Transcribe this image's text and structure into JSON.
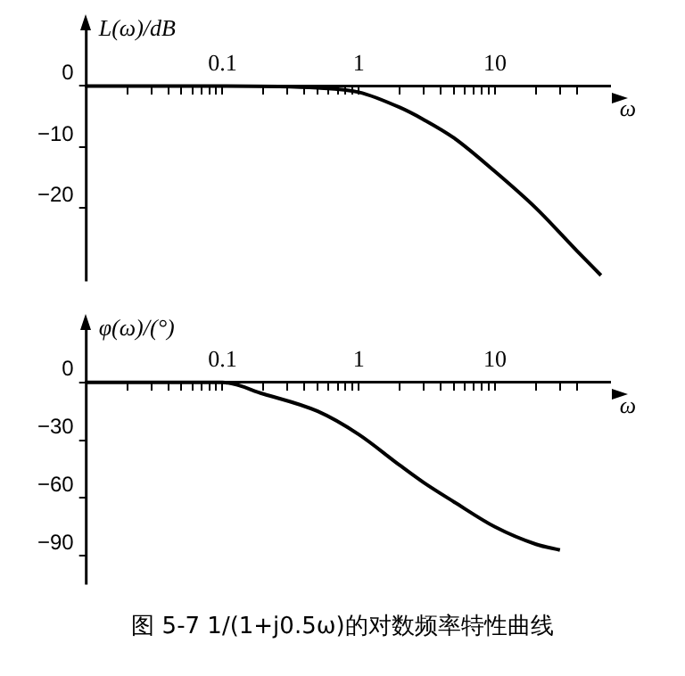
{
  "chart_data": [
    {
      "type": "line",
      "ylabel": "L(ω)/dB",
      "xlabel": "ω",
      "log": "x",
      "grid": false,
      "legend": false,
      "marker": "none",
      "line_style": "solid",
      "x": [
        0.01,
        0.1,
        0.5,
        1,
        2,
        3,
        5,
        10,
        20,
        40,
        60
      ],
      "series": [
        {
          "color": "#000000",
          "values": [
            0,
            0,
            -0.3,
            -1,
            -3.5,
            -5.5,
            -8.5,
            -14,
            -20,
            -27,
            -31
          ]
        }
      ],
      "xlim": [
        0.01,
        70
      ],
      "xticks": [
        {
          "value": 0.02,
          "label": null
        },
        {
          "value": 0.03,
          "label": null
        },
        {
          "value": 0.04,
          "label": null
        },
        {
          "value": 0.05,
          "label": null
        },
        {
          "value": 0.06,
          "label": null
        },
        {
          "value": 0.07,
          "label": null
        },
        {
          "value": 0.08,
          "label": null
        },
        {
          "value": 0.09,
          "label": null
        },
        0.1,
        {
          "value": 0.2,
          "label": null
        },
        {
          "value": 0.3,
          "label": null
        },
        {
          "value": 0.4,
          "label": null
        },
        {
          "value": 0.5,
          "label": null
        },
        {
          "value": 0.6,
          "label": null
        },
        {
          "value": 0.7,
          "label": null
        },
        {
          "value": 0.8,
          "label": null
        },
        {
          "value": 0.9,
          "label": null
        },
        1,
        {
          "value": 2,
          "label": null
        },
        {
          "value": 3,
          "label": null
        },
        {
          "value": 4,
          "label": null
        },
        {
          "value": 5,
          "label": null
        },
        {
          "value": 6,
          "label": null
        },
        {
          "value": 7,
          "label": null
        },
        {
          "value": 8,
          "label": null
        },
        {
          "value": 9,
          "label": null
        },
        10,
        {
          "value": 20,
          "label": null
        },
        {
          "value": 30,
          "label": null
        },
        {
          "value": 40,
          "label": null
        }
      ],
      "ylim": [
        -32,
        10
      ],
      "yticks": [
        0,
        -10,
        -20
      ]
    },
    {
      "type": "line",
      "ylabel": "φ(ω)/(°)",
      "xlabel": "ω",
      "log": "x",
      "grid": false,
      "legend": false,
      "marker": "none",
      "line_style": "solid",
      "x": [
        0.01,
        0.1,
        0.2,
        0.5,
        1,
        2,
        3,
        5,
        10,
        20,
        30
      ],
      "series": [
        {
          "color": "#000000",
          "values": [
            0,
            0,
            -6,
            -15,
            -27,
            -43,
            -52,
            -62,
            -75,
            -84,
            -87
          ]
        }
      ],
      "xlim": [
        0.01,
        70
      ],
      "xticks": [
        {
          "value": 0.02,
          "label": null
        },
        {
          "value": 0.03,
          "label": null
        },
        {
          "value": 0.04,
          "label": null
        },
        {
          "value": 0.05,
          "label": null
        },
        {
          "value": 0.06,
          "label": null
        },
        {
          "value": 0.07,
          "label": null
        },
        {
          "value": 0.08,
          "label": null
        },
        {
          "value": 0.09,
          "label": null
        },
        0.1,
        {
          "value": 0.2,
          "label": null
        },
        {
          "value": 0.3,
          "label": null
        },
        {
          "value": 0.4,
          "label": null
        },
        {
          "value": 0.5,
          "label": null
        },
        {
          "value": 0.6,
          "label": null
        },
        {
          "value": 0.7,
          "label": null
        },
        {
          "value": 0.8,
          "label": null
        },
        {
          "value": 0.9,
          "label": null
        },
        1,
        {
          "value": 2,
          "label": null
        },
        {
          "value": 3,
          "label": null
        },
        {
          "value": 4,
          "label": null
        },
        {
          "value": 5,
          "label": null
        },
        {
          "value": 6,
          "label": null
        },
        {
          "value": 7,
          "label": null
        },
        {
          "value": 8,
          "label": null
        },
        {
          "value": 9,
          "label": null
        },
        10,
        {
          "value": 20,
          "label": null
        },
        {
          "value": 30,
          "label": null
        },
        {
          "value": 40,
          "label": null
        }
      ],
      "ylim": [
        -105,
        30
      ],
      "yticks": [
        0,
        -30,
        -60,
        -90
      ],
      "annotations": [
        "图 5-7 1/(1+j0.5ω)的对数频率特性曲线"
      ]
    }
  ]
}
